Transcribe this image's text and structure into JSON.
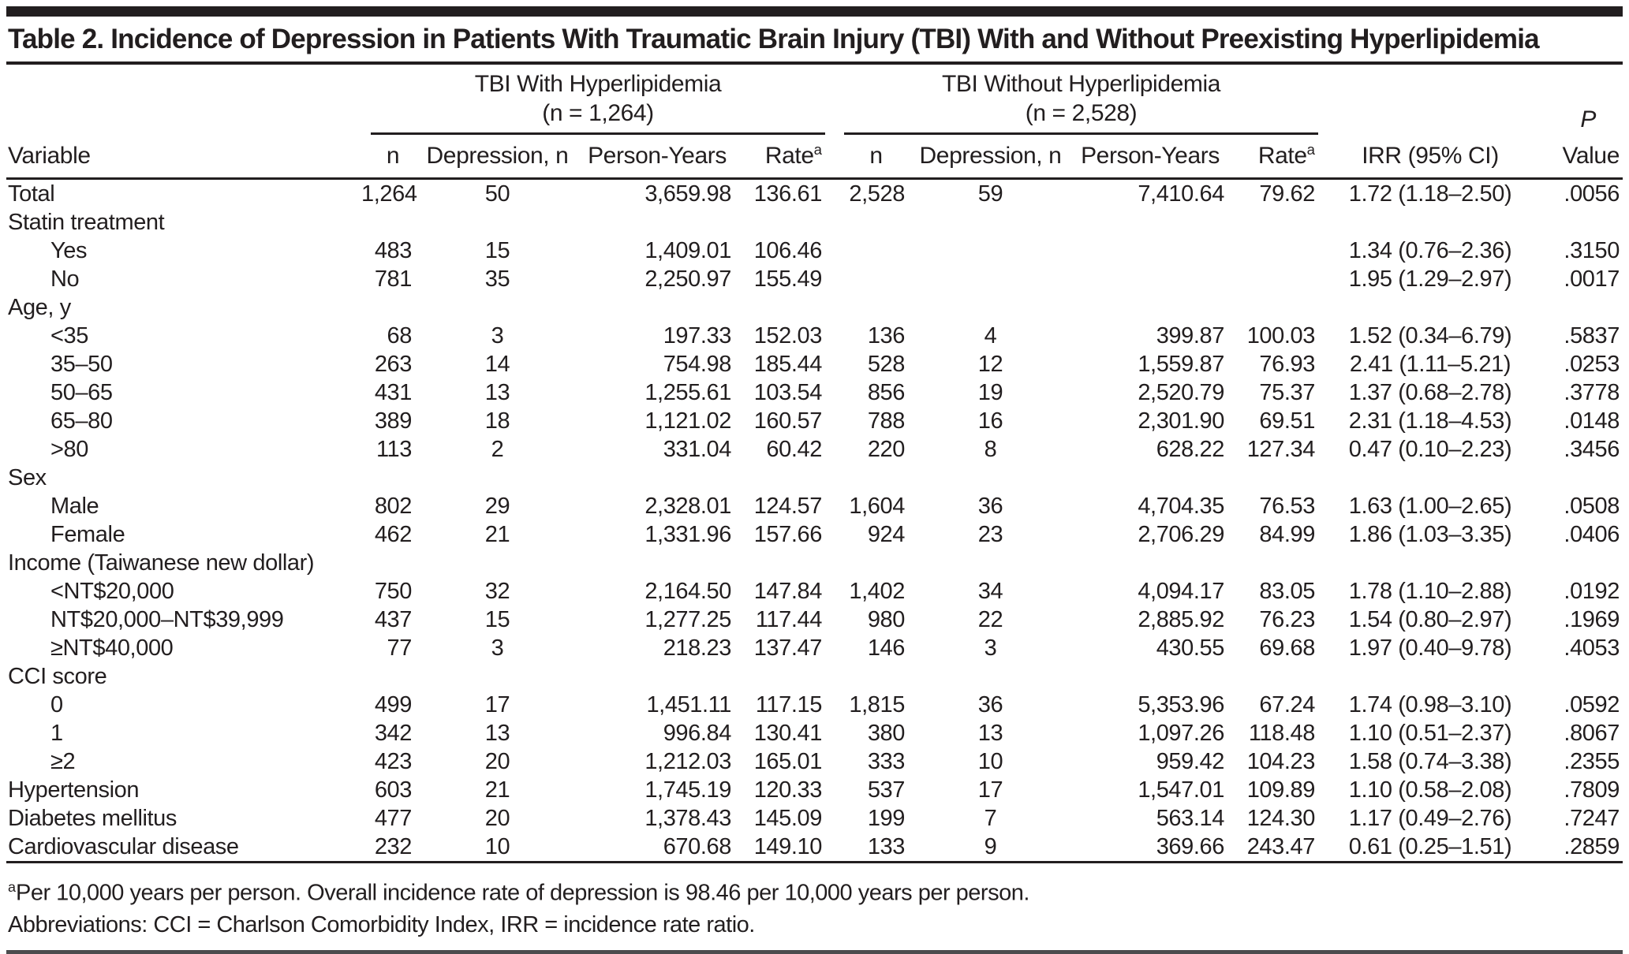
{
  "table": {
    "title": "Table 2. Incidence of Depression in Patients With Traumatic Brain Injury (TBI) With and Without Preexisting Hyperlipidemia",
    "groups": [
      {
        "title": "TBI With Hyperlipidemia",
        "n_label": "(n = 1,264)"
      },
      {
        "title": "TBI Without Hyperlipidemia",
        "n_label": "(n = 2,528)"
      }
    ],
    "p_header": {
      "line1": "P",
      "line2": "Value"
    },
    "columns": {
      "variable": "Variable",
      "n": "n",
      "depression": "Depression, n",
      "person_years": "Person-Years",
      "rate": "Rate",
      "rate_sup": "a",
      "irr": "IRR (95% CI)"
    },
    "rows": [
      {
        "label": "Total",
        "indent": 0,
        "cells": [
          "1,264",
          "50",
          "3,659.98",
          "136.61",
          "2,528",
          "59",
          "7,410.64",
          "79.62",
          "1.72 (1.18–2.50)",
          ".0056"
        ]
      },
      {
        "label": "Statin treatment",
        "indent": 0,
        "cells": [
          "",
          "",
          "",
          "",
          "",
          "",
          "",
          "",
          "",
          ""
        ]
      },
      {
        "label": "Yes",
        "indent": 1,
        "cells": [
          "483",
          "15",
          "1,409.01",
          "106.46",
          "",
          "",
          "",
          "",
          "1.34 (0.76–2.36)",
          ".3150"
        ]
      },
      {
        "label": "No",
        "indent": 1,
        "cells": [
          "781",
          "35",
          "2,250.97",
          "155.49",
          "",
          "",
          "",
          "",
          "1.95 (1.29–2.97)",
          ".0017"
        ]
      },
      {
        "label": "Age, y",
        "indent": 0,
        "cells": [
          "",
          "",
          "",
          "",
          "",
          "",
          "",
          "",
          "",
          ""
        ]
      },
      {
        "label": "<35",
        "indent": 1,
        "cells": [
          "68",
          "3",
          "197.33",
          "152.03",
          "136",
          "4",
          "399.87",
          "100.03",
          "1.52 (0.34–6.79)",
          ".5837"
        ]
      },
      {
        "label": "35–50",
        "indent": 1,
        "cells": [
          "263",
          "14",
          "754.98",
          "185.44",
          "528",
          "12",
          "1,559.87",
          "76.93",
          "2.41 (1.11–5.21)",
          ".0253"
        ]
      },
      {
        "label": "50–65",
        "indent": 1,
        "cells": [
          "431",
          "13",
          "1,255.61",
          "103.54",
          "856",
          "19",
          "2,520.79",
          "75.37",
          "1.37 (0.68–2.78)",
          ".3778"
        ]
      },
      {
        "label": "65–80",
        "indent": 1,
        "cells": [
          "389",
          "18",
          "1,121.02",
          "160.57",
          "788",
          "16",
          "2,301.90",
          "69.51",
          "2.31 (1.18–4.53)",
          ".0148"
        ]
      },
      {
        "label": ">80",
        "indent": 1,
        "cells": [
          "113",
          "2",
          "331.04",
          "60.42",
          "220",
          "8",
          "628.22",
          "127.34",
          "0.47 (0.10–2.23)",
          ".3456"
        ]
      },
      {
        "label": "Sex",
        "indent": 0,
        "cells": [
          "",
          "",
          "",
          "",
          "",
          "",
          "",
          "",
          "",
          ""
        ]
      },
      {
        "label": "Male",
        "indent": 1,
        "cells": [
          "802",
          "29",
          "2,328.01",
          "124.57",
          "1,604",
          "36",
          "4,704.35",
          "76.53",
          "1.63 (1.00–2.65)",
          ".0508"
        ]
      },
      {
        "label": "Female",
        "indent": 1,
        "cells": [
          "462",
          "21",
          "1,331.96",
          "157.66",
          "924",
          "23",
          "2,706.29",
          "84.99",
          "1.86 (1.03–3.35)",
          ".0406"
        ]
      },
      {
        "label": "Income (Taiwanese new dollar)",
        "indent": 0,
        "cells": [
          "",
          "",
          "",
          "",
          "",
          "",
          "",
          "",
          "",
          ""
        ]
      },
      {
        "label": "<NT$20,000",
        "indent": 1,
        "cells": [
          "750",
          "32",
          "2,164.50",
          "147.84",
          "1,402",
          "34",
          "4,094.17",
          "83.05",
          "1.78 (1.10–2.88)",
          ".0192"
        ]
      },
      {
        "label": "NT$20,000–NT$39,999",
        "indent": 1,
        "cells": [
          "437",
          "15",
          "1,277.25",
          "117.44",
          "980",
          "22",
          "2,885.92",
          "76.23",
          "1.54 (0.80–2.97)",
          ".1969"
        ]
      },
      {
        "label": "≥NT$40,000",
        "indent": 1,
        "cells": [
          "77",
          "3",
          "218.23",
          "137.47",
          "146",
          "3",
          "430.55",
          "69.68",
          "1.97 (0.40–9.78)",
          ".4053"
        ]
      },
      {
        "label": "CCI score",
        "indent": 0,
        "cells": [
          "",
          "",
          "",
          "",
          "",
          "",
          "",
          "",
          "",
          ""
        ]
      },
      {
        "label": "0",
        "indent": 1,
        "cells": [
          "499",
          "17",
          "1,451.11",
          "117.15",
          "1,815",
          "36",
          "5,353.96",
          "67.24",
          "1.74 (0.98–3.10)",
          ".0592"
        ]
      },
      {
        "label": "1",
        "indent": 1,
        "cells": [
          "342",
          "13",
          "996.84",
          "130.41",
          "380",
          "13",
          "1,097.26",
          "118.48",
          "1.10 (0.51–2.37)",
          ".8067"
        ]
      },
      {
        "label": "≥2",
        "indent": 1,
        "cells": [
          "423",
          "20",
          "1,212.03",
          "165.01",
          "333",
          "10",
          "959.42",
          "104.23",
          "1.58 (0.74–3.38)",
          ".2355"
        ]
      },
      {
        "label": "Hypertension",
        "indent": 0,
        "cells": [
          "603",
          "21",
          "1,745.19",
          "120.33",
          "537",
          "17",
          "1,547.01",
          "109.89",
          "1.10 (0.58–2.08)",
          ".7809"
        ]
      },
      {
        "label": "Diabetes mellitus",
        "indent": 0,
        "cells": [
          "477",
          "20",
          "1,378.43",
          "145.09",
          "199",
          "7",
          "563.14",
          "124.30",
          "1.17 (0.49–2.76)",
          ".7247"
        ]
      },
      {
        "label": "Cardiovascular disease",
        "indent": 0,
        "cells": [
          "232",
          "10",
          "670.68",
          "149.10",
          "133",
          "9",
          "369.66",
          "243.47",
          "0.61 (0.25–1.51)",
          ".2859"
        ]
      }
    ],
    "footnotes": {
      "note1_sup": "a",
      "note1_text": "Per 10,000 years per person. Overall incidence rate of depression is 98.46 per 10,000 years per person.",
      "note2": "Abbreviations: CCI = Charlson Comorbidity Index, IRR = incidence rate ratio."
    },
    "colors": {
      "text": "#221e1f",
      "rule": "#221e1f",
      "bottom_rule": "#4c4c4e",
      "background": "#ffffff"
    }
  }
}
